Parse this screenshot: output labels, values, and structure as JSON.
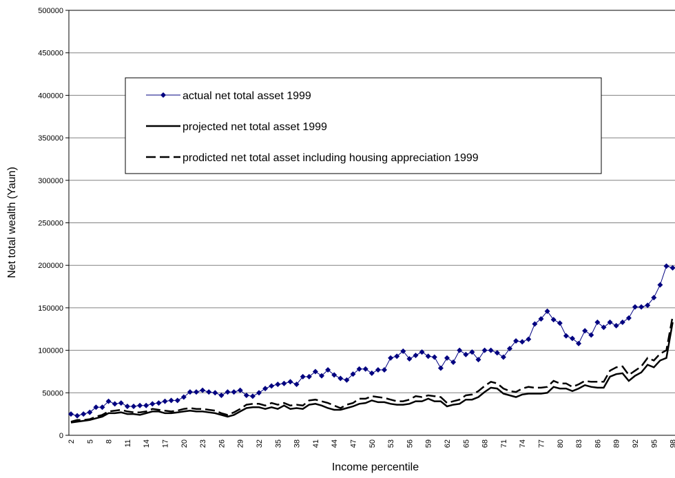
{
  "chart_data": {
    "type": "line",
    "xlabel": "Income percentile",
    "ylabel": "Net total wealth (Yaun)",
    "categories": [
      2,
      null,
      null,
      5,
      null,
      null,
      8,
      null,
      null,
      11,
      null,
      null,
      14,
      null,
      null,
      17,
      null,
      null,
      20,
      null,
      null,
      23,
      null,
      null,
      26,
      null,
      null,
      29,
      null,
      null,
      32,
      null,
      null,
      35,
      null,
      null,
      38,
      null,
      null,
      41,
      null,
      null,
      44,
      null,
      null,
      47,
      null,
      null,
      50,
      null,
      null,
      53,
      null,
      null,
      56,
      null,
      null,
      59,
      null,
      null,
      62,
      null,
      null,
      65,
      null,
      null,
      68,
      null,
      null,
      71,
      null,
      null,
      74,
      null,
      null,
      77,
      null,
      null,
      80,
      null,
      null,
      83,
      null,
      null,
      86,
      null,
      null,
      89,
      null,
      null,
      92,
      null,
      null,
      95,
      null,
      null,
      98
    ],
    "series": [
      {
        "name": "actual net total asset 1999",
        "color": "#000080",
        "style": "marker",
        "values": [
          25000,
          23000,
          25000,
          27000,
          33000,
          33000,
          40000,
          37000,
          38000,
          34000,
          34000,
          35000,
          35000,
          37000,
          38000,
          40000,
          41000,
          41000,
          45000,
          51000,
          51000,
          53000,
          51000,
          50000,
          47000,
          51000,
          51000,
          53000,
          47000,
          46000,
          50000,
          55000,
          58000,
          60000,
          61000,
          63000,
          60000,
          69000,
          69000,
          75000,
          70000,
          77000,
          71000,
          67000,
          65000,
          72000,
          78000,
          78000,
          73000,
          77000,
          77000,
          91000,
          93000,
          99000,
          90000,
          94000,
          98000,
          93000,
          92000,
          79000,
          91000,
          86000,
          100000,
          95000,
          98000,
          89000,
          100000,
          100000,
          97000,
          92000,
          102000,
          111000,
          110000,
          113000,
          131000,
          137000,
          146000,
          136000,
          132000,
          117000,
          114000,
          108000,
          123000,
          118000,
          133000,
          127000,
          133000,
          129000,
          133000,
          138000,
          151000,
          151000,
          153000,
          162000,
          177000,
          199000,
          197000
        ]
      },
      {
        "name": "projected net total asset 1999",
        "color": "#000000",
        "style": "solid",
        "values": [
          15000,
          16000,
          17000,
          18000,
          20000,
          22000,
          26000,
          26000,
          27000,
          25000,
          25000,
          24000,
          26000,
          28000,
          28000,
          26000,
          26000,
          27000,
          28000,
          29000,
          28000,
          28000,
          27000,
          26000,
          24000,
          22000,
          24000,
          28000,
          32000,
          33000,
          33000,
          31000,
          33000,
          31000,
          35000,
          31000,
          32000,
          31000,
          36000,
          37000,
          35000,
          32000,
          30000,
          30000,
          32000,
          34000,
          37000,
          38000,
          41000,
          39000,
          39000,
          37000,
          36000,
          36000,
          37000,
          40000,
          40000,
          43000,
          40000,
          40000,
          34000,
          36000,
          37000,
          42000,
          42000,
          45000,
          51000,
          56000,
          55000,
          49000,
          47000,
          45000,
          48000,
          49000,
          49000,
          49000,
          50000,
          57000,
          55000,
          55000,
          52000,
          55000,
          59000,
          57000,
          56000,
          56000,
          69000,
          72000,
          73000,
          64000,
          70000,
          74000,
          83000,
          80000,
          88000,
          91000,
          133000
        ]
      },
      {
        "name": "prodicted net total asset including housing appreciation 1999",
        "color": "#000000",
        "style": "dashed",
        "values": [
          16000,
          18000,
          18000,
          19000,
          22000,
          24000,
          28000,
          29000,
          30000,
          28000,
          27000,
          27000,
          28000,
          31000,
          30000,
          29000,
          28000,
          29000,
          31000,
          32000,
          31000,
          31000,
          30000,
          29000,
          26000,
          24000,
          27000,
          31000,
          36000,
          37000,
          37000,
          35000,
          38000,
          36000,
          38000,
          35000,
          36000,
          35000,
          41000,
          42000,
          40000,
          38000,
          35000,
          32000,
          36000,
          38000,
          43000,
          43000,
          46000,
          45000,
          44000,
          42000,
          40000,
          40000,
          42000,
          46000,
          45000,
          47000,
          46000,
          45000,
          38000,
          40000,
          42000,
          47000,
          48000,
          52000,
          58000,
          63000,
          61000,
          55000,
          52000,
          51000,
          55000,
          57000,
          56000,
          56000,
          57000,
          64000,
          61000,
          61000,
          57000,
          60000,
          64000,
          63000,
          63000,
          63000,
          76000,
          80000,
          81000,
          71000,
          76000,
          81000,
          91000,
          88000,
          96000,
          100000,
          140000
        ]
      }
    ],
    "ylim": [
      0,
      500000
    ],
    "yticks": [
      0,
      50000,
      100000,
      150000,
      200000,
      250000,
      300000,
      350000,
      400000,
      450000,
      500000
    ],
    "grid": true,
    "legend": "upper left"
  }
}
